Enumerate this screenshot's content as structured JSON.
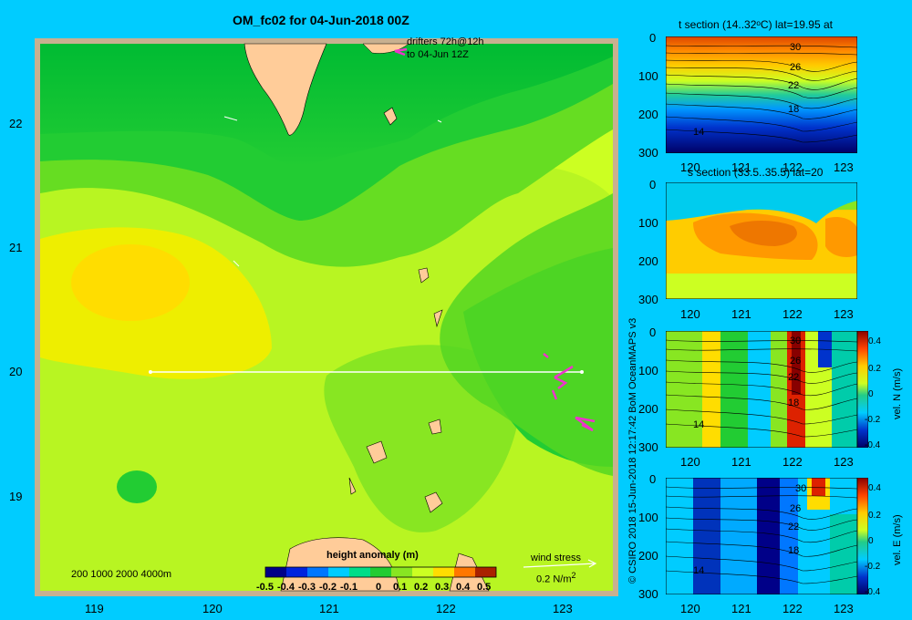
{
  "main_map": {
    "title": "OM_fc02 for 04-Jun-2018 00Z",
    "drifter_note_1": "drifters 72h@12h",
    "drifter_note_2": "to 04-Jun 12Z",
    "depth_legend": "200  1000  2000  4000m",
    "lon_ticks": [
      "119",
      "120",
      "121",
      "122",
      "123"
    ],
    "lat_ticks": [
      "22",
      "21",
      "20",
      "19"
    ],
    "colorbar_title": "height anomaly  (m)",
    "colorbar_ticks": [
      "-0.5",
      "-0.4",
      "-0.3",
      "-0.2",
      "-0.1",
      "0",
      "0.1",
      "0.2",
      "0.3",
      "0.4",
      "0.5"
    ],
    "wind_label": "wind stress",
    "wind_scale": "0.2 N/m",
    "wind_scale_sup": "2",
    "colors": {
      "ocean_low": "#00bb33",
      "ocean_mid": "#66dd22",
      "ocean_high": "#ccff22",
      "warm": "#ffdd00",
      "land": "#ffcc99",
      "frame": "#c8b090"
    }
  },
  "credit": "© CSIRO 2018   15-Jun-2018 12:17:42 BoM OceanMAPS v3",
  "panels": [
    {
      "title": "t section (14..32ᵒC) lat=19.95 at",
      "x_ticks": [
        "120",
        "121",
        "122",
        "123"
      ],
      "y_ticks": [
        "0",
        "100",
        "200",
        "300"
      ],
      "contour_labels": [
        "30",
        "26",
        "22",
        "18",
        "14"
      ]
    },
    {
      "title": "s section (33.5..35.5) lat=20",
      "x_ticks": [
        "120",
        "121",
        "122",
        "123"
      ],
      "y_ticks": [
        "0",
        "100",
        "200",
        "300"
      ]
    },
    {
      "title": "",
      "x_ticks": [
        "120",
        "121",
        "122",
        "123"
      ],
      "y_ticks": [
        "0",
        "100",
        "200",
        "300"
      ],
      "contour_labels": [
        "30",
        "26",
        "22",
        "18",
        "14"
      ],
      "colorbar_ticks": [
        "0.4",
        "0.2",
        "0",
        "-0.2",
        "-0.4"
      ],
      "colorbar_label": "vel. N (m/s)"
    },
    {
      "title": "",
      "x_ticks": [
        "120",
        "121",
        "122",
        "123"
      ],
      "y_ticks": [
        "0",
        "100",
        "200",
        "300"
      ],
      "contour_labels": [
        "30",
        "26",
        "22",
        "18",
        "14"
      ],
      "colorbar_ticks": [
        "0.4",
        "0.2",
        "0",
        "-0.2",
        "-0.4"
      ],
      "colorbar_label": "vel. E (m/s)"
    }
  ]
}
